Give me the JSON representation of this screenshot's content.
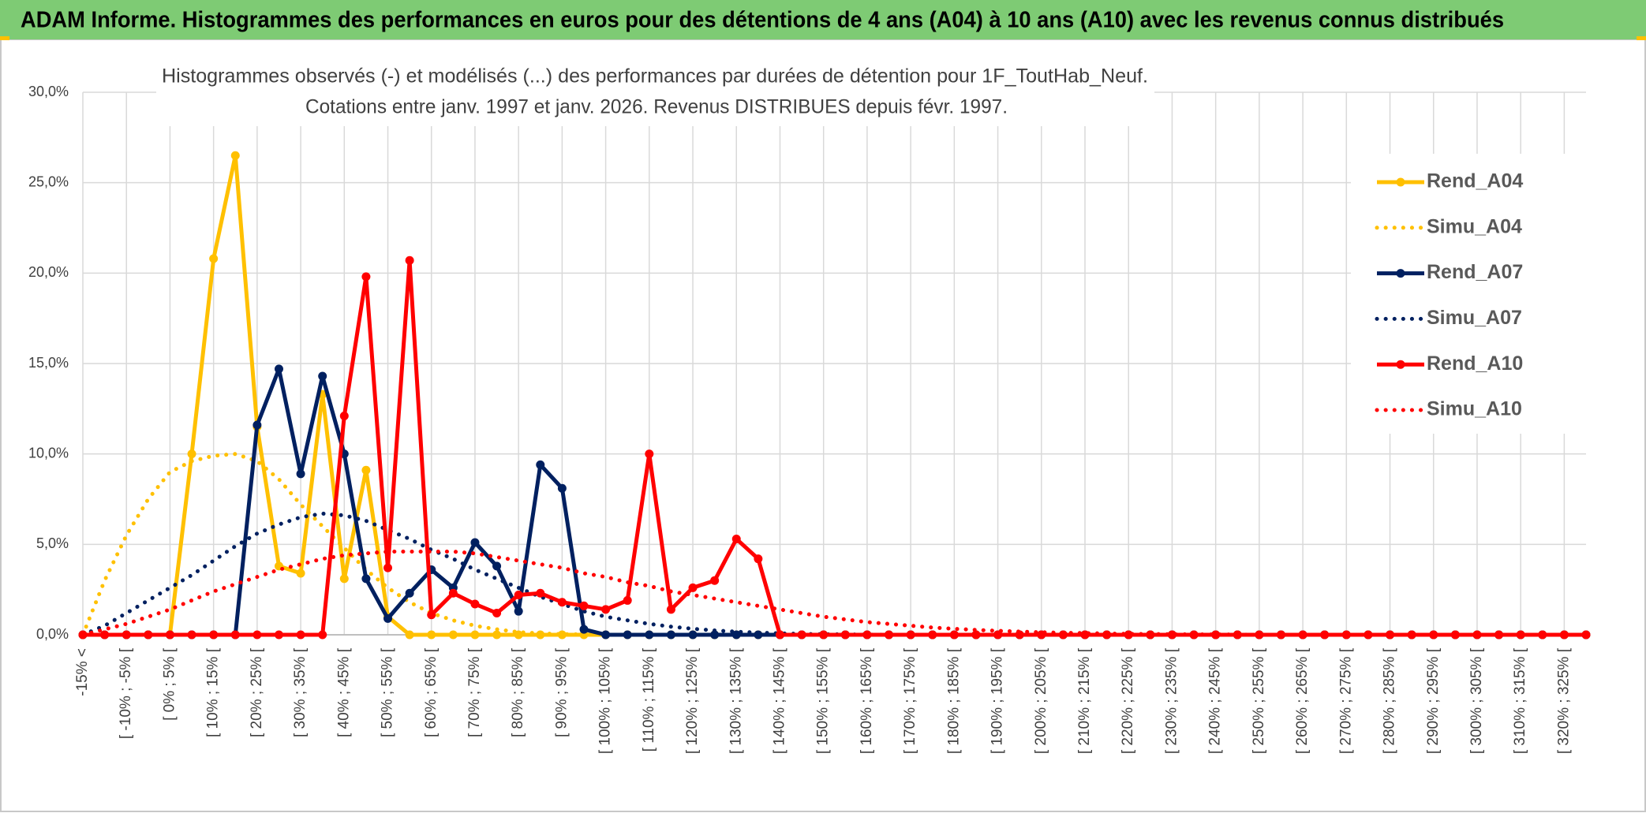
{
  "chart_data": {
    "type": "line",
    "title": "ADAM Informe. Histogrammes des performances en euros pour des détentions de 4 ans (A04) à 10 ans (A10) avec les revenus connus distribués",
    "subtitle": [
      "Histogrammes observés (-) et modélisés (...) des performances par durées de détention pour 1F_ToutHab_Neuf.",
      "Cotations entre janv. 1997 et janv. 2026. Revenus DISTRIBUES depuis févr. 1997."
    ],
    "categories": [
      "-15% <",
      null,
      "[ -10% ; -5% [",
      null,
      "[ 0% ; 5% [",
      null,
      "[ 10% ; 15% [",
      null,
      "[ 20% ; 25% [",
      null,
      "[ 30% ; 35% [",
      null,
      "[ 40% ; 45% [",
      null,
      "[ 50% ; 55% [",
      null,
      "[ 60% ; 65% [",
      null,
      "[ 70% ; 75% [",
      null,
      "[ 80% ; 85% [",
      null,
      "[ 90% ; 95% [",
      null,
      "[ 100% ; 105% [",
      null,
      "[ 110% ; 115% [",
      null,
      "[ 120% ; 125% [",
      null,
      "[ 130% ; 135% [",
      null,
      "[ 140% ; 145% [",
      null,
      "[ 150% ; 155% [",
      null,
      "[ 160% ; 165% [",
      null,
      "[ 170% ; 175% [",
      null,
      "[ 180% ; 185% [",
      null,
      "[ 190% ; 195% [",
      null,
      "[ 200% ; 205% [",
      null,
      "[ 210% ; 215% [",
      null,
      "[ 220% ; 225% [",
      null,
      "[ 230% ; 235% [",
      null,
      "[ 240% ; 245% [",
      null,
      "[ 250% ; 255% [",
      null,
      "[ 260% ; 265% [",
      null,
      "[ 270% ; 275% [",
      null,
      "[ 280% ; 285% [",
      null,
      "[ 290% ; 295% [",
      null,
      "[ 300% ; 305% [",
      null,
      "[ 310% ; 315% [",
      null,
      "[ 320% ; 325% [",
      null
    ],
    "series": [
      {
        "name": "Rend_A04",
        "color": "#ffc000",
        "line_style": "solid",
        "markers": true,
        "values": [
          0,
          0,
          0,
          0,
          0,
          10,
          20.8,
          26.5,
          11.5,
          3.8,
          3.4,
          13.3,
          3.1,
          9.1,
          1,
          0,
          0,
          0,
          0,
          0,
          0,
          0,
          0,
          0,
          0,
          0,
          0,
          0,
          0,
          0,
          0,
          0,
          0,
          0,
          0,
          0,
          0,
          0,
          0,
          0,
          0,
          0,
          0,
          0,
          0,
          0,
          0,
          0,
          0,
          0,
          0,
          0,
          0,
          0,
          0,
          0,
          0,
          0,
          0,
          0,
          0,
          0,
          0,
          0,
          0,
          0,
          0,
          0,
          0,
          0
        ]
      },
      {
        "name": "Simu_A04",
        "color": "#ffc000",
        "line_style": "dotted",
        "markers": false,
        "values": [
          0,
          3,
          5.5,
          7.5,
          9,
          9.6,
          9.9,
          10,
          9.6,
          8.6,
          7.2,
          6,
          4.8,
          3.6,
          2.6,
          1.8,
          1.2,
          0.8,
          0.5,
          0.3,
          0.15,
          0.08,
          0.04,
          0.02,
          0,
          0,
          0,
          0,
          0,
          0,
          0,
          0,
          0,
          0,
          0,
          0,
          0,
          0,
          0,
          0,
          0,
          0,
          0,
          0,
          0,
          0,
          0,
          0,
          0,
          0,
          0,
          0,
          0,
          0,
          0,
          0,
          0,
          0,
          0,
          0,
          0,
          0,
          0,
          0,
          0,
          0,
          0,
          0,
          0,
          0
        ]
      },
      {
        "name": "Rend_A07",
        "color": "#002060",
        "line_style": "solid",
        "markers": true,
        "values": [
          0,
          0,
          0,
          0,
          0,
          0,
          0,
          0,
          11.6,
          14.7,
          8.9,
          14.3,
          10,
          3.1,
          0.9,
          2.3,
          3.6,
          2.6,
          5.1,
          3.8,
          1.3,
          9.4,
          8.1,
          0.3,
          0,
          0,
          0,
          0,
          0,
          0,
          0,
          0,
          0,
          0,
          0,
          0,
          0,
          0,
          0,
          0,
          0,
          0,
          0,
          0,
          0,
          0,
          0,
          0,
          0,
          0,
          0,
          0,
          0,
          0,
          0,
          0,
          0,
          0,
          0,
          0,
          0,
          0,
          0,
          0,
          0,
          0,
          0,
          0,
          0,
          0
        ]
      },
      {
        "name": "Simu_A07",
        "color": "#002060",
        "line_style": "dotted",
        "markers": false,
        "values": [
          0,
          0.5,
          1.2,
          1.9,
          2.6,
          3.3,
          4.1,
          4.9,
          5.6,
          6.1,
          6.5,
          6.7,
          6.6,
          6.3,
          5.8,
          5.3,
          4.7,
          4.2,
          3.6,
          3.1,
          2.6,
          2.1,
          1.7,
          1.3,
          1,
          0.8,
          0.6,
          0.45,
          0.33,
          0.24,
          0.17,
          0.12,
          0.08,
          0.05,
          0.03,
          0.02,
          0.01,
          0,
          0,
          0,
          0,
          0,
          0,
          0,
          0,
          0,
          0,
          0,
          0,
          0,
          0,
          0,
          0,
          0,
          0,
          0,
          0,
          0,
          0,
          0,
          0,
          0,
          0,
          0,
          0,
          0,
          0,
          0,
          0,
          0
        ]
      },
      {
        "name": "Rend_A10",
        "color": "#ff0000",
        "line_style": "solid",
        "markers": true,
        "values": [
          0,
          0,
          0,
          0,
          0,
          0,
          0,
          0,
          0,
          0,
          0,
          0,
          12.1,
          19.8,
          3.7,
          20.7,
          1.1,
          2.3,
          1.7,
          1.2,
          2.2,
          2.3,
          1.8,
          1.6,
          1.4,
          1.9,
          10,
          1.4,
          2.6,
          3,
          5.3,
          4.2,
          0,
          0,
          0,
          0,
          0,
          0,
          0,
          0,
          0,
          0,
          0,
          0,
          0,
          0,
          0,
          0,
          0,
          0,
          0,
          0,
          0,
          0,
          0,
          0,
          0,
          0,
          0,
          0,
          0,
          0,
          0,
          0,
          0,
          0,
          0,
          0,
          0,
          0
        ]
      },
      {
        "name": "Simu_A10",
        "color": "#ff0000",
        "line_style": "dotted",
        "markers": false,
        "values": [
          0,
          0.3,
          0.6,
          1,
          1.4,
          1.9,
          2.4,
          2.8,
          3.2,
          3.6,
          3.9,
          4.2,
          4.4,
          4.5,
          4.6,
          4.6,
          4.6,
          4.6,
          4.5,
          4.3,
          4.1,
          3.9,
          3.7,
          3.4,
          3.2,
          2.9,
          2.7,
          2.4,
          2.2,
          2,
          1.8,
          1.6,
          1.4,
          1.2,
          1,
          0.85,
          0.7,
          0.6,
          0.5,
          0.4,
          0.33,
          0.27,
          0.22,
          0.18,
          0.14,
          0.11,
          0.09,
          0.07,
          0.05,
          0.04,
          0.03,
          0.02,
          0.02,
          0.01,
          0,
          0,
          0,
          0,
          0,
          0,
          0,
          0,
          0,
          0,
          0,
          0,
          0,
          0,
          0,
          0
        ]
      }
    ],
    "ylim": [
      0,
      30
    ],
    "yticks": [
      {
        "value": 0,
        "label": "0,0%"
      },
      {
        "value": 5,
        "label": "5,0%"
      },
      {
        "value": 10,
        "label": "10,0%"
      },
      {
        "value": 15,
        "label": "15,0%"
      },
      {
        "value": 20,
        "label": "20,0%"
      },
      {
        "value": 25,
        "label": "25,0%"
      },
      {
        "value": 30,
        "label": "30,0%"
      }
    ],
    "grid": true,
    "legend": "right"
  }
}
